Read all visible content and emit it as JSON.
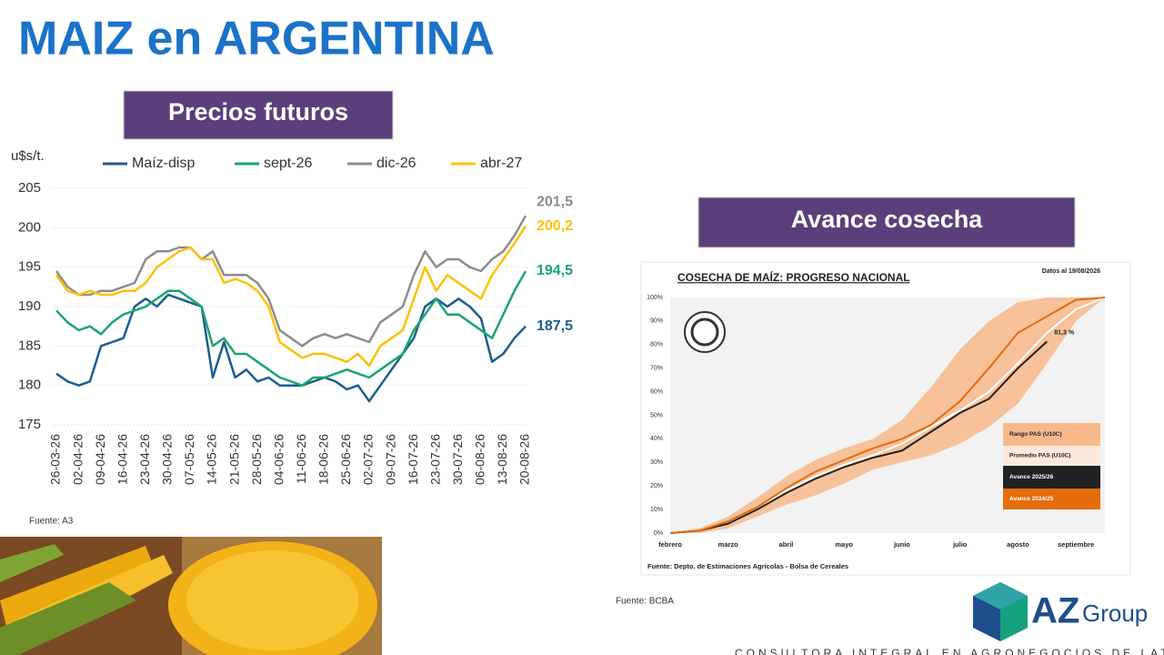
{
  "header": {
    "title": "MAIZ en ARGENTINA"
  },
  "chart_data": [
    {
      "type": "line",
      "title": "Precios futuros",
      "y_label": "u$s/t.",
      "source": "Fuente: A3",
      "legend": "top",
      "grid": true,
      "ylim": [
        175,
        205
      ],
      "yticks": [
        175,
        180,
        185,
        190,
        195,
        200,
        205
      ],
      "categories": [
        "26-03-26",
        null,
        "02-04-26",
        null,
        "09-04-26",
        null,
        "16-04-26",
        null,
        "23-04-26",
        null,
        "30-04-26",
        null,
        "07-05-26",
        null,
        "14-05-26",
        null,
        "21-05-26",
        null,
        "28-05-26",
        null,
        "04-06-26",
        null,
        "11-06-26",
        null,
        "18-06-26",
        null,
        "25-06-26",
        null,
        "02-07-26",
        null,
        "09-07-26",
        null,
        "16-07-26",
        null,
        "23-07-26",
        null,
        "30-07-26",
        null,
        "06-08-26",
        null,
        "13-08-26",
        null,
        "20-08-26"
      ],
      "series": [
        {
          "name": "Maíz-disp",
          "color": "#1b5e8c",
          "values": [
            181.5,
            180.5,
            180,
            180.5,
            185,
            185.5,
            186,
            190,
            191,
            190,
            191.5,
            191,
            190.5,
            190,
            181,
            185.5,
            181,
            182,
            180.5,
            181,
            180,
            180,
            180,
            180.5,
            181,
            180.5,
            179.5,
            180,
            178,
            180,
            182,
            184,
            186,
            190,
            191,
            190,
            191,
            190,
            188.5,
            183,
            184,
            186,
            187.5
          ],
          "value_labels": [
            null,
            null,
            null,
            null,
            null,
            null,
            null,
            null,
            null,
            null,
            null,
            null,
            null,
            null,
            null,
            null,
            null,
            null,
            null,
            null,
            null,
            null,
            null,
            null,
            null,
            null,
            null,
            null,
            null,
            null,
            null,
            null,
            null,
            null,
            null,
            null,
            null,
            null,
            null,
            null,
            null,
            null,
            "187,5"
          ]
        },
        {
          "name": "sept-26",
          "color": "#1aa56f",
          "values": [
            189.5,
            188,
            187,
            187.5,
            186.5,
            188,
            189,
            189.5,
            190,
            191,
            192,
            192,
            191,
            190,
            185,
            186,
            184,
            184,
            183,
            182,
            181,
            180.5,
            180,
            181,
            181,
            181.5,
            182,
            181.5,
            181,
            182,
            183,
            184,
            187,
            189,
            191,
            189,
            189,
            188,
            187,
            186,
            189,
            192,
            194.5
          ],
          "value_labels": [
            null,
            null,
            null,
            null,
            null,
            null,
            null,
            null,
            null,
            null,
            null,
            null,
            null,
            null,
            null,
            null,
            null,
            null,
            null,
            null,
            null,
            null,
            null,
            null,
            null,
            null,
            null,
            null,
            null,
            null,
            null,
            null,
            null,
            null,
            null,
            null,
            null,
            null,
            null,
            null,
            null,
            null,
            "194,5"
          ]
        },
        {
          "name": "dic-26",
          "color": "#8c8c8c",
          "values": [
            194.5,
            192.5,
            191.5,
            191.5,
            192,
            192,
            192.5,
            193,
            196,
            197,
            197,
            197.5,
            197.5,
            196,
            197,
            194,
            194,
            194,
            193,
            191,
            187,
            186,
            185,
            186,
            186.5,
            186,
            186.5,
            186,
            185.5,
            188,
            189,
            190,
            194,
            197,
            195,
            196,
            196,
            195,
            194.5,
            196,
            197,
            199,
            201.5
          ],
          "value_labels": [
            null,
            null,
            null,
            null,
            null,
            null,
            null,
            null,
            null,
            null,
            null,
            null,
            null,
            null,
            null,
            null,
            null,
            null,
            null,
            null,
            null,
            null,
            null,
            null,
            null,
            null,
            null,
            null,
            null,
            null,
            null,
            null,
            null,
            null,
            null,
            null,
            null,
            null,
            null,
            null,
            null,
            null,
            "201,5"
          ]
        },
        {
          "name": "abr-27",
          "color": "#ffc000",
          "values": [
            194,
            192,
            191.5,
            192,
            191.5,
            191.5,
            192,
            192,
            193,
            195,
            196,
            197,
            197.5,
            196,
            196,
            193,
            193.5,
            193,
            192,
            190,
            185.5,
            184.5,
            183.5,
            184,
            184,
            183.5,
            183,
            184,
            182.5,
            185,
            186,
            187,
            191,
            195,
            192,
            194,
            193,
            192,
            191,
            194,
            196,
            198,
            200.2
          ],
          "value_labels": [
            null,
            null,
            null,
            null,
            null,
            null,
            null,
            null,
            null,
            null,
            null,
            null,
            null,
            null,
            null,
            null,
            null,
            null,
            null,
            null,
            null,
            null,
            null,
            null,
            null,
            null,
            null,
            null,
            null,
            null,
            null,
            null,
            null,
            null,
            null,
            null,
            null,
            null,
            null,
            null,
            null,
            null,
            "200,2"
          ]
        }
      ]
    },
    {
      "type": "line",
      "title": "Avance cosecha",
      "subtitle": "COSECHA DE MAÍZ: PROGRESO NACIONAL",
      "note": "Datos al 19/08/2026",
      "inner_source": "Fuente: Depto. de Estimaciones Agrícolas - Bolsa de Cereales",
      "source": "Fuente: BCBA",
      "legend": "right",
      "grid": false,
      "ylim": [
        0,
        100
      ],
      "yticks": [
        {
          "value": 0,
          "label": "0%"
        },
        {
          "value": 10,
          "label": "10%"
        },
        {
          "value": 20,
          "label": "20%"
        },
        {
          "value": 30,
          "label": "30%"
        },
        {
          "value": 40,
          "label": "40%"
        },
        {
          "value": 50,
          "label": "50%"
        },
        {
          "value": 60,
          "label": "60%"
        },
        {
          "value": 70,
          "label": "70%"
        },
        {
          "value": 80,
          "label": "80%"
        },
        {
          "value": 90,
          "label": "90%"
        },
        {
          "value": 100,
          "label": "100%"
        }
      ],
      "categories": [
        "febrero",
        null,
        "marzo",
        null,
        "abril",
        null,
        "mayo",
        null,
        "junio",
        null,
        "julio",
        null,
        "agosto",
        null,
        "septiembre",
        null
      ],
      "series": [
        {
          "name": "Rango PAS (U10C)",
          "color": "#f8b98a",
          "low": [
            0,
            0,
            2,
            7,
            12,
            16,
            21,
            27,
            30,
            33,
            38,
            45,
            55,
            72,
            90,
            100
          ],
          "high": [
            0,
            2,
            7,
            15,
            24,
            31,
            36,
            40,
            48,
            62,
            78,
            90,
            98,
            100,
            100,
            100
          ]
        },
        {
          "name": "Promedio PAS (U10C)",
          "color": "#ffffff",
          "values": [
            0,
            1,
            4,
            10,
            18,
            24,
            29,
            33,
            38,
            45,
            52,
            60,
            72,
            85,
            95,
            100
          ]
        },
        {
          "name": "Avance 2025/26",
          "color": "#222222",
          "values": [
            0,
            1,
            4,
            10,
            17,
            23,
            28,
            32,
            35,
            43,
            51,
            57,
            70,
            81.3,
            null,
            null
          ],
          "value_labels": [
            null,
            null,
            null,
            null,
            null,
            null,
            null,
            null,
            null,
            null,
            null,
            null,
            null,
            "81,3 %",
            null,
            null
          ]
        },
        {
          "name": "Avance 2024/25",
          "color": "#e46c0a",
          "values": [
            0,
            1,
            5,
            11,
            19,
            26,
            31,
            36,
            40,
            46,
            56,
            70,
            85,
            92,
            99,
            100
          ]
        }
      ]
    }
  ],
  "logo": {
    "mark": "AZ",
    "word": "Group",
    "tagline": "CONSULTORA INTEGRAL EN AGRONEGOCIOS DE LATAM"
  }
}
